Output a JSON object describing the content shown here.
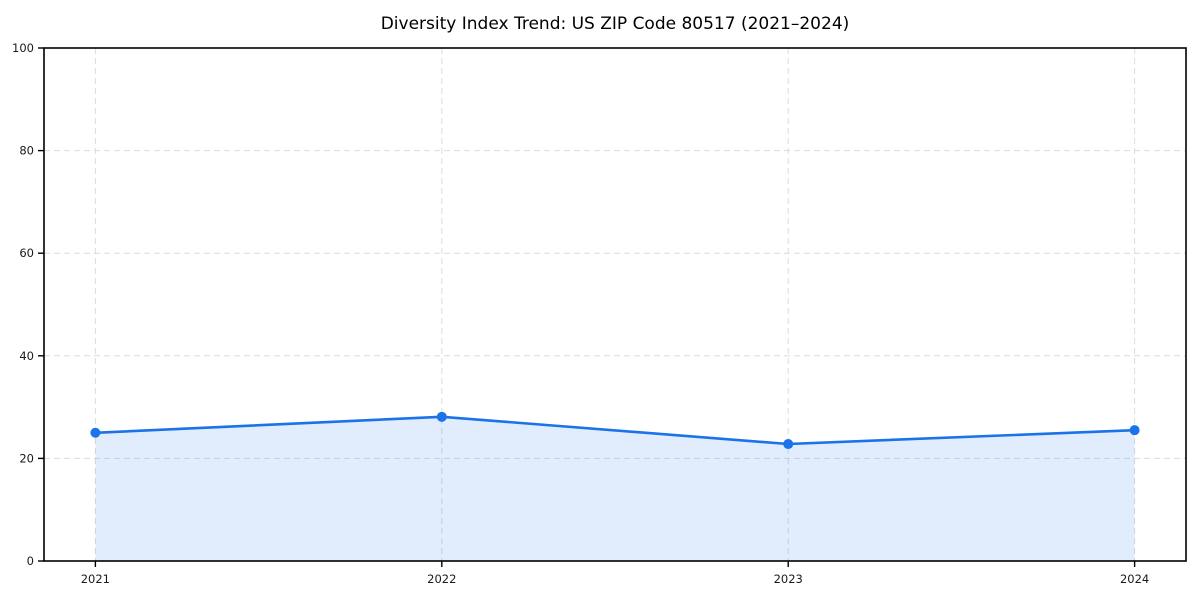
{
  "chart_data": {
    "type": "area",
    "title": "Diversity Index Trend: US ZIP Code 80517 (2021–2024)",
    "categories": [
      "2021",
      "2022",
      "2023",
      "2024"
    ],
    "series": [
      {
        "name": "Diversity Index",
        "values": [
          25.0,
          28.1,
          22.8,
          25.5
        ]
      }
    ],
    "xlabel": "",
    "ylabel": "",
    "ylim": [
      0,
      100
    ],
    "yticks": [
      0,
      20,
      40,
      60,
      80,
      100
    ],
    "grid": "dashed-both-axes",
    "legend_position": "none",
    "marker": "circle",
    "line_color": "#1a73e8",
    "fill_opacity": 0.13,
    "grid_color": "#dcdcdc",
    "axis_color": "#000000",
    "tick_label_color": "#1a1a1a",
    "background_color": "#ffffff",
    "x_margin_fraction": 0.045
  }
}
